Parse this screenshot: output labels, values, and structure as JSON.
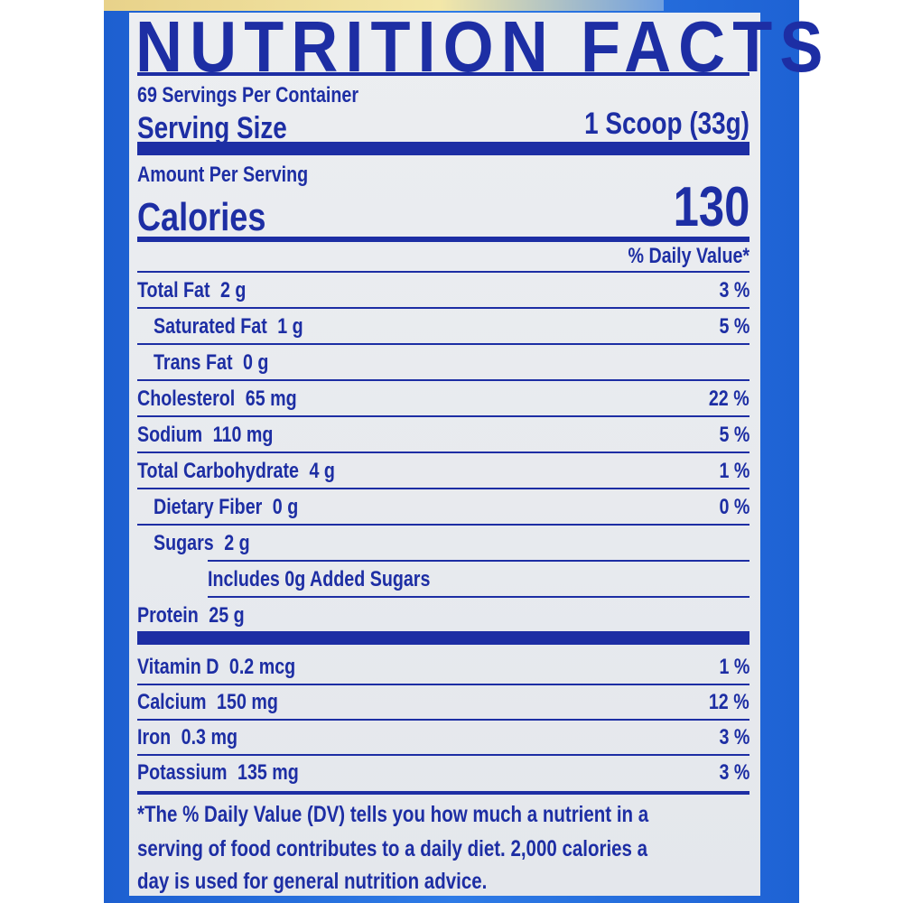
{
  "title": "NUTRITION FACTS",
  "servings_per_container": "69 Servings Per Container",
  "serving_size_label": "Serving Size",
  "serving_size_value": "1 Scoop (33g)",
  "amount_per_serving": "Amount Per Serving",
  "calories_label": "Calories",
  "calories_value": "130",
  "dv_header": "% Daily Value*",
  "nutrients": [
    {
      "label": "Total Fat",
      "amount": "2 g",
      "dv": "3 %"
    },
    {
      "label": "Saturated Fat",
      "amount": "1 g",
      "dv": "5 %"
    },
    {
      "label": "Trans Fat",
      "amount": "0 g",
      "dv": ""
    },
    {
      "label": "Cholesterol",
      "amount": "65 mg",
      "dv": "22 %"
    },
    {
      "label": "Sodium",
      "amount": "110 mg",
      "dv": "5 %"
    },
    {
      "label": "Total Carbohydrate",
      "amount": "4 g",
      "dv": "1 %"
    },
    {
      "label": "Dietary Fiber",
      "amount": "0 g",
      "dv": "0 %"
    },
    {
      "label": "Sugars",
      "amount": "2 g",
      "dv": ""
    },
    {
      "label": "Includes 0g Added Sugars",
      "amount": "",
      "dv": ""
    },
    {
      "label": "Protein",
      "amount": "25 g",
      "dv": ""
    }
  ],
  "vitamins": [
    {
      "label": "Vitamin D",
      "amount": "0.2 mcg",
      "dv": "1 %"
    },
    {
      "label": "Calcium",
      "amount": "150 mg",
      "dv": "12 %"
    },
    {
      "label": "Iron",
      "amount": "0.3 mg",
      "dv": "3 %"
    },
    {
      "label": "Potassium",
      "amount": "135 mg",
      "dv": "3 %"
    }
  ],
  "footnote_lines": [
    "*The % Daily Value (DV) tells you how much a nutrient in a",
    "serving of food contributes to a daily diet. 2,000 calories a",
    "day is used for general nutrition advice."
  ],
  "colors": {
    "ink": "#1d2ea4",
    "container_blue": "#2e7be6",
    "panel": "#e8eaee"
  }
}
